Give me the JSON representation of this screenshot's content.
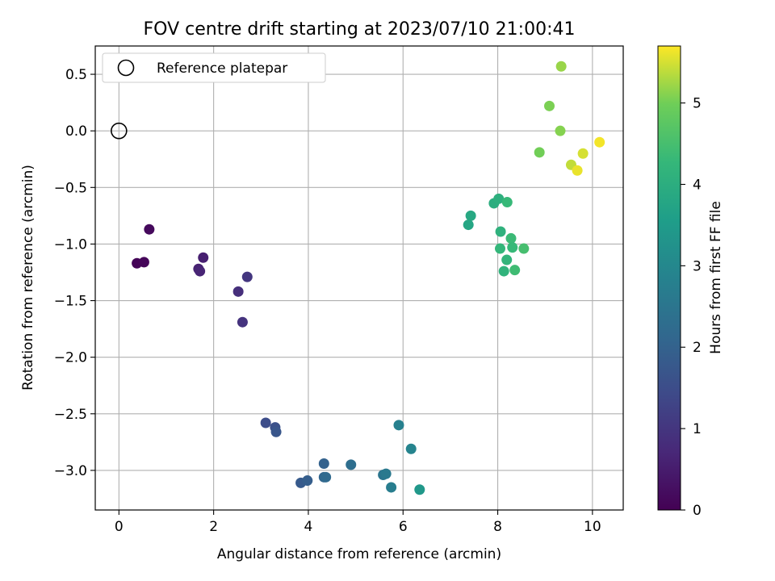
{
  "chart_data": {
    "type": "scatter",
    "title": "FOV centre drift starting at 2023/07/10 21:00:41",
    "xlabel": "Angular distance from reference (arcmin)",
    "ylabel": "Rotation from reference (arcmin)",
    "xlim": [
      -0.5,
      10.65
    ],
    "ylim": [
      -3.35,
      0.75
    ],
    "xticks": [
      0,
      2,
      4,
      6,
      8,
      10
    ],
    "xtick_labels": [
      "0",
      "2",
      "4",
      "6",
      "8",
      "10"
    ],
    "yticks": [
      0.5,
      0.0,
      -0.5,
      -1.0,
      -1.5,
      -2.0,
      -2.5,
      -3.0
    ],
    "ytick_labels": [
      "0.5",
      "0.0",
      "−0.5",
      "−1.0",
      "−1.5",
      "−2.0",
      "−2.5",
      "−3.0"
    ],
    "grid": true,
    "legend": {
      "position": "upper-left",
      "entries": [
        {
          "label": "Reference platepar",
          "marker": "open-circle"
        }
      ]
    },
    "reference_point": {
      "x": 0.0,
      "y": 0.0
    },
    "colorbar": {
      "label": "Hours from first FF file",
      "colormap": "viridis",
      "range": [
        0,
        5.7
      ],
      "ticks": [
        0,
        1,
        2,
        3,
        4,
        5
      ],
      "tick_labels": [
        "0",
        "1",
        "2",
        "3",
        "4",
        "5"
      ]
    },
    "series": [
      {
        "x": [
          0.38,
          0.53,
          0.64,
          1.68,
          1.71,
          1.78,
          2.52,
          2.61,
          2.71,
          3.1,
          3.3,
          3.32,
          3.84,
          3.98,
          4.33,
          4.33,
          4.37,
          4.9,
          5.58,
          5.64,
          5.75,
          5.91,
          6.17,
          6.35,
          7.38,
          7.43,
          7.92,
          8.02,
          8.05,
          8.06,
          8.13,
          8.19,
          8.2,
          8.28,
          8.31,
          8.36,
          8.55,
          8.88,
          9.09,
          9.32,
          9.34,
          9.55,
          9.68,
          9.8,
          10.15
        ],
        "y": [
          -1.17,
          -1.16,
          -0.87,
          -1.22,
          -1.24,
          -1.12,
          -1.42,
          -1.69,
          -1.29,
          -2.58,
          -2.62,
          -2.66,
          -3.11,
          -3.09,
          -2.94,
          -3.06,
          -3.06,
          -2.95,
          -3.04,
          -3.03,
          -3.15,
          -2.6,
          -2.81,
          -3.17,
          -0.83,
          -0.75,
          -0.64,
          -0.6,
          -1.04,
          -0.89,
          -1.24,
          -1.14,
          -0.63,
          -0.95,
          -1.03,
          -1.23,
          -1.04,
          -0.19,
          0.22,
          0.0,
          0.57,
          -0.3,
          -0.35,
          -0.2,
          -0.1
        ],
        "hours": [
          0.05,
          0.1,
          0.15,
          0.6,
          0.65,
          0.55,
          0.85,
          0.95,
          1.0,
          1.5,
          1.6,
          1.7,
          1.8,
          1.9,
          2.0,
          2.1,
          2.2,
          2.3,
          2.5,
          2.6,
          2.7,
          2.8,
          2.9,
          3.4,
          3.8,
          3.85,
          4.0,
          4.05,
          4.25,
          4.1,
          4.15,
          4.2,
          4.3,
          4.35,
          4.3,
          4.4,
          4.5,
          5.0,
          5.05,
          5.1,
          5.2,
          5.4,
          5.6,
          5.5,
          5.65
        ]
      }
    ]
  }
}
